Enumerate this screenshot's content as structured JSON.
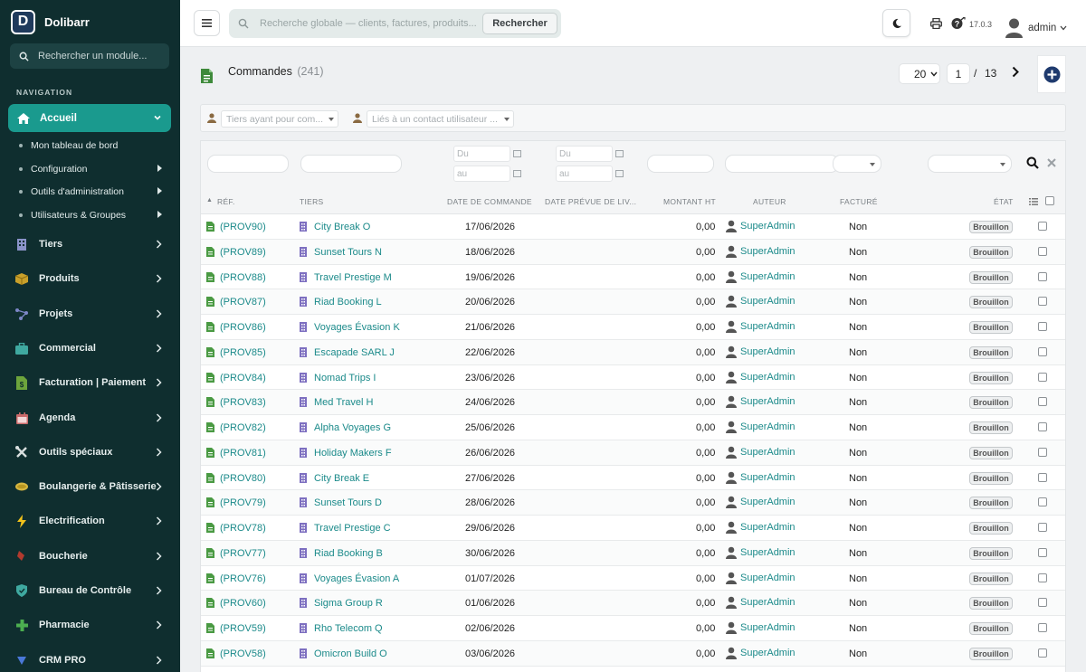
{
  "app": {
    "name": "Dolibarr",
    "logo_letter": "D"
  },
  "sidebar": {
    "search_placeholder": "Rechercher un module...",
    "nav_header": "NAVIGATION",
    "active": {
      "label": "Accueil"
    },
    "subitems": [
      {
        "label": "Mon tableau de bord",
        "has_arrow": false
      },
      {
        "label": "Configuration",
        "has_arrow": true
      },
      {
        "label": "Outils d'administration",
        "has_arrow": true
      },
      {
        "label": "Utilisateurs & Groupes",
        "has_arrow": true
      }
    ],
    "items": [
      {
        "label": "Tiers",
        "icon": "building-icon"
      },
      {
        "label": "Produits",
        "icon": "box-icon"
      },
      {
        "label": "Projets",
        "icon": "project-icon"
      },
      {
        "label": "Commercial",
        "icon": "briefcase-icon"
      },
      {
        "label": "Facturation | Paiement",
        "icon": "invoice-icon"
      },
      {
        "label": "Agenda",
        "icon": "calendar-icon"
      },
      {
        "label": "Outils spéciaux",
        "icon": "tools-icon"
      },
      {
        "label": "Boulangerie & Pâtisserie",
        "icon": "bread-icon"
      },
      {
        "label": "Electrification",
        "icon": "bolt-icon"
      },
      {
        "label": "Boucherie",
        "icon": "meat-icon"
      },
      {
        "label": "Bureau de Contrôle",
        "icon": "shield-icon"
      },
      {
        "label": "Pharmacie",
        "icon": "cross-icon"
      },
      {
        "label": "CRM PRO",
        "icon": "funnel-icon"
      }
    ]
  },
  "topbar": {
    "search_placeholder": "Recherche globale — clients, factures, produits...",
    "search_button": "Rechercher",
    "version": "17.0.3",
    "user": "admin"
  },
  "page": {
    "title": "Commandes",
    "count": "(241)",
    "per_page": "20",
    "current_page": "1",
    "page_sep": "/",
    "total_pages": "13"
  },
  "filters": {
    "thirdparty_placeholder": "Tiers ayant pour com...",
    "contact_placeholder": "Liés à un contact utilisateur ...",
    "date_from": "Du",
    "date_to": "au"
  },
  "table": {
    "headers": {
      "ref": "RÉF.",
      "tiers": "TIERS",
      "date": "DATE DE COMMANDE",
      "delivery": "DATE PRÉVUE DE LIV...",
      "amount": "MONTANT HT",
      "author": "AUTEUR",
      "billed": "FACTURÉ",
      "status": "ÉTAT"
    },
    "rows": [
      {
        "ref": "(PROV90)",
        "tiers": "City Break O",
        "date": "17/06/2026",
        "amount": "0,00",
        "author": "SuperAdmin",
        "billed": "Non",
        "status": "Brouillon"
      },
      {
        "ref": "(PROV89)",
        "tiers": "Sunset Tours N",
        "date": "18/06/2026",
        "amount": "0,00",
        "author": "SuperAdmin",
        "billed": "Non",
        "status": "Brouillon"
      },
      {
        "ref": "(PROV88)",
        "tiers": "Travel Prestige M",
        "date": "19/06/2026",
        "amount": "0,00",
        "author": "SuperAdmin",
        "billed": "Non",
        "status": "Brouillon"
      },
      {
        "ref": "(PROV87)",
        "tiers": "Riad Booking L",
        "date": "20/06/2026",
        "amount": "0,00",
        "author": "SuperAdmin",
        "billed": "Non",
        "status": "Brouillon"
      },
      {
        "ref": "(PROV86)",
        "tiers": "Voyages Évasion K",
        "date": "21/06/2026",
        "amount": "0,00",
        "author": "SuperAdmin",
        "billed": "Non",
        "status": "Brouillon"
      },
      {
        "ref": "(PROV85)",
        "tiers": "Escapade SARL J",
        "date": "22/06/2026",
        "amount": "0,00",
        "author": "SuperAdmin",
        "billed": "Non",
        "status": "Brouillon"
      },
      {
        "ref": "(PROV84)",
        "tiers": "Nomad Trips I",
        "date": "23/06/2026",
        "amount": "0,00",
        "author": "SuperAdmin",
        "billed": "Non",
        "status": "Brouillon"
      },
      {
        "ref": "(PROV83)",
        "tiers": "Med Travel H",
        "date": "24/06/2026",
        "amount": "0,00",
        "author": "SuperAdmin",
        "billed": "Non",
        "status": "Brouillon"
      },
      {
        "ref": "(PROV82)",
        "tiers": "Alpha Voyages G",
        "date": "25/06/2026",
        "amount": "0,00",
        "author": "SuperAdmin",
        "billed": "Non",
        "status": "Brouillon"
      },
      {
        "ref": "(PROV81)",
        "tiers": "Holiday Makers F",
        "date": "26/06/2026",
        "amount": "0,00",
        "author": "SuperAdmin",
        "billed": "Non",
        "status": "Brouillon"
      },
      {
        "ref": "(PROV80)",
        "tiers": "City Break E",
        "date": "27/06/2026",
        "amount": "0,00",
        "author": "SuperAdmin",
        "billed": "Non",
        "status": "Brouillon"
      },
      {
        "ref": "(PROV79)",
        "tiers": "Sunset Tours D",
        "date": "28/06/2026",
        "amount": "0,00",
        "author": "SuperAdmin",
        "billed": "Non",
        "status": "Brouillon"
      },
      {
        "ref": "(PROV78)",
        "tiers": "Travel Prestige C",
        "date": "29/06/2026",
        "amount": "0,00",
        "author": "SuperAdmin",
        "billed": "Non",
        "status": "Brouillon"
      },
      {
        "ref": "(PROV77)",
        "tiers": "Riad Booking B",
        "date": "30/06/2026",
        "amount": "0,00",
        "author": "SuperAdmin",
        "billed": "Non",
        "status": "Brouillon"
      },
      {
        "ref": "(PROV76)",
        "tiers": "Voyages Évasion A",
        "date": "01/07/2026",
        "amount": "0,00",
        "author": "SuperAdmin",
        "billed": "Non",
        "status": "Brouillon"
      },
      {
        "ref": "(PROV60)",
        "tiers": "Sigma Group R",
        "date": "01/06/2026",
        "amount": "0,00",
        "author": "SuperAdmin",
        "billed": "Non",
        "status": "Brouillon"
      },
      {
        "ref": "(PROV59)",
        "tiers": "Rho Telecom Q",
        "date": "02/06/2026",
        "amount": "0,00",
        "author": "SuperAdmin",
        "billed": "Non",
        "status": "Brouillon"
      },
      {
        "ref": "(PROV58)",
        "tiers": "Omicron Build O",
        "date": "03/06/2026",
        "amount": "0,00",
        "author": "SuperAdmin",
        "billed": "Non",
        "status": "Brouillon"
      }
    ]
  }
}
